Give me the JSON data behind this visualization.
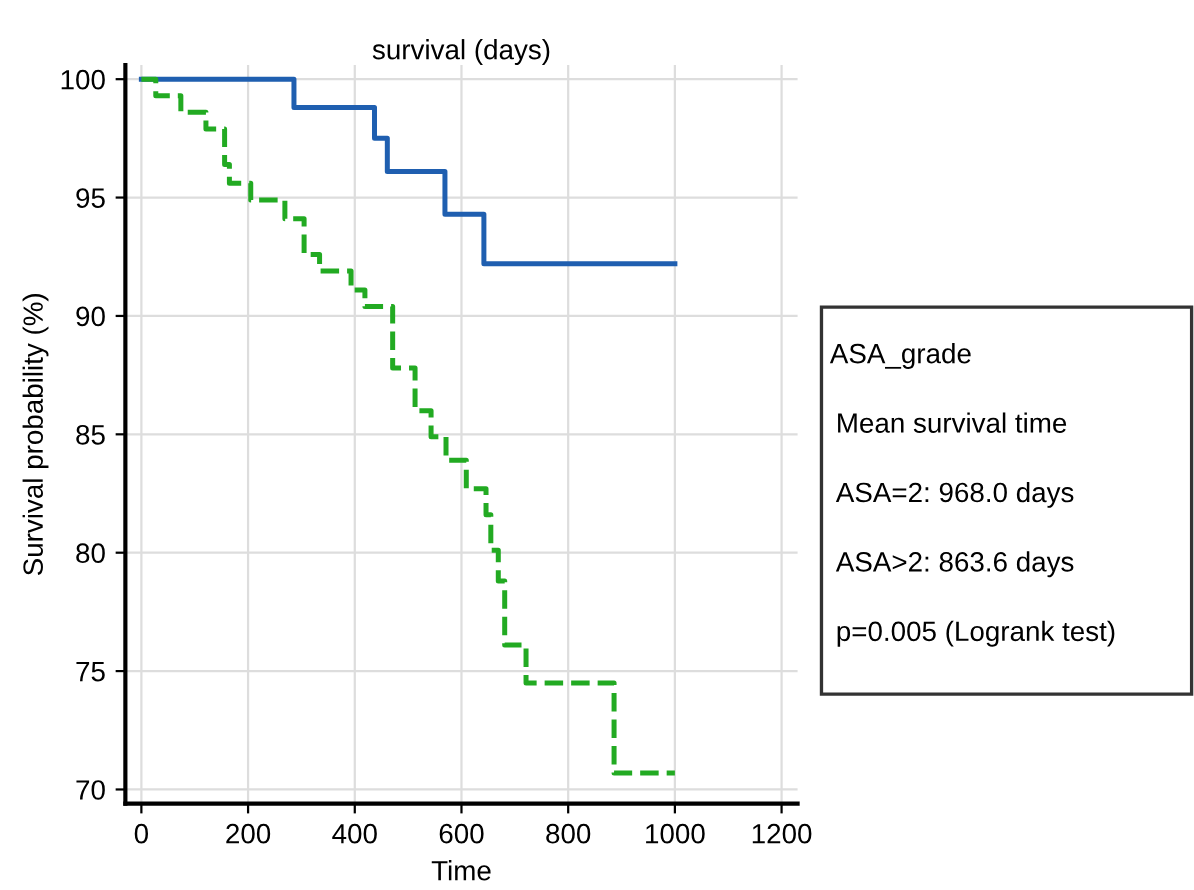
{
  "chart_data": {
    "type": "step",
    "title": "survival (days)",
    "xlabel": "Time",
    "ylabel": "Survival probability (%)",
    "series": [
      {
        "color": "#1f5fb0",
        "line_style": "solid",
        "x": [
          0,
          286,
          437,
          461,
          569,
          642,
          1000
        ],
        "values": [
          100,
          98.8,
          97.5,
          96.1,
          94.3,
          92.2,
          92.2
        ]
      },
      {
        "color": "#22aa22",
        "line_style": "dashed",
        "x": [
          0,
          27,
          74,
          121,
          156,
          165,
          205,
          269,
          305,
          334,
          393,
          419,
          471,
          513,
          543,
          571,
          609,
          646,
          655,
          669,
          681,
          721,
          886,
          1000
        ],
        "values": [
          100,
          99.3,
          98.6,
          97.9,
          96.4,
          95.6,
          94.9,
          94.1,
          92.6,
          91.9,
          91.1,
          90.4,
          87.8,
          86.0,
          84.9,
          83.9,
          82.7,
          81.6,
          80.1,
          78.8,
          76.1,
          74.5,
          70.7,
          70.7
        ]
      }
    ],
    "annotations": [
      "ASA_grade",
      "Mean survival time",
      "ASA=2: 968.0 days",
      "ASA>2: 863.6 days",
      "p=0.005 (Logrank test)"
    ],
    "xlim": [
      -30,
      1230
    ],
    "xticks": [
      0,
      200,
      400,
      600,
      800,
      1000,
      1200
    ],
    "ylim": [
      69.4,
      100.6
    ],
    "yticks": [
      70,
      75,
      80,
      85,
      90,
      95,
      100
    ],
    "grid": true
  }
}
